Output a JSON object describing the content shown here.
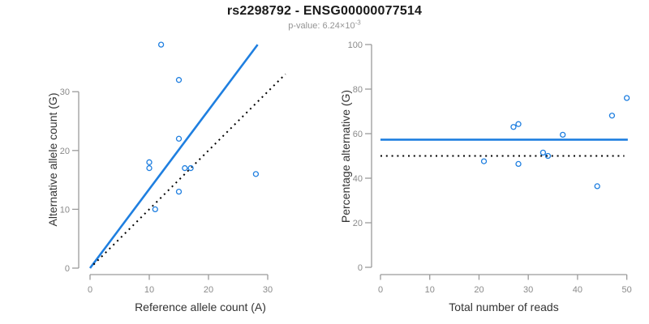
{
  "header": {
    "title": "rs2298792 - ENSG00000077514",
    "pvalue_label": "p-value: ",
    "pvalue_mantissa": "6.24",
    "pvalue_times": "×",
    "pvalue_base": "10",
    "pvalue_exponent": "-3"
  },
  "colors": {
    "accent_blue": "#1f7fe0",
    "axis_line": "#9b9b9b",
    "tick_text": "#8a8a8a",
    "label_text": "#333333",
    "dotted_black": "#000000"
  },
  "chart_data": [
    {
      "id": "left",
      "type": "scatter",
      "xlabel": "Reference allele count (A)",
      "ylabel": "Alternative allele count (G)",
      "xlim": [
        0,
        30
      ],
      "ylim": [
        0,
        30
      ],
      "xticks": [
        0,
        10,
        20,
        30
      ],
      "yticks": [
        0,
        10,
        20,
        30
      ],
      "grid": false,
      "points": [
        [
          12,
          38
        ],
        [
          15,
          32
        ],
        [
          15,
          22
        ],
        [
          10,
          18
        ],
        [
          10,
          17
        ],
        [
          16,
          17
        ],
        [
          17,
          17
        ],
        [
          28,
          16
        ],
        [
          15,
          13
        ],
        [
          11,
          10
        ]
      ],
      "lines": [
        {
          "name": "regression-line",
          "style": "solid",
          "color": "blue",
          "x1": 0,
          "y1": 0,
          "x2": 28.3,
          "y2": 38
        },
        {
          "name": "identity-line",
          "style": "dotted",
          "color": "black",
          "x1": 0.6,
          "y1": 0.6,
          "x2": 33,
          "y2": 33
        }
      ]
    },
    {
      "id": "right",
      "type": "scatter",
      "xlabel": "Total number of reads",
      "ylabel": "Percentage alternative (G)",
      "xlim": [
        0,
        50
      ],
      "ylim": [
        0,
        100
      ],
      "xticks": [
        0,
        10,
        20,
        30,
        40,
        50
      ],
      "yticks": [
        0,
        20,
        40,
        60,
        80,
        100
      ],
      "grid": false,
      "points": [
        [
          50,
          76
        ],
        [
          47,
          68.1
        ],
        [
          37,
          59.5
        ],
        [
          28,
          64.3
        ],
        [
          27,
          63
        ],
        [
          33,
          51.5
        ],
        [
          34,
          50
        ],
        [
          44,
          36.4
        ],
        [
          28,
          46.4
        ],
        [
          21,
          47.6
        ]
      ],
      "lines": [
        {
          "name": "mean-percentage-line",
          "style": "solid",
          "color": "blue",
          "x1": 0,
          "y1": 57.3,
          "x2": 50.2,
          "y2": 57.3
        },
        {
          "name": "expected-percentage-line",
          "style": "dotted",
          "color": "black",
          "x1": 0,
          "y1": 50,
          "x2": 49.5,
          "y2": 50
        }
      ]
    }
  ]
}
